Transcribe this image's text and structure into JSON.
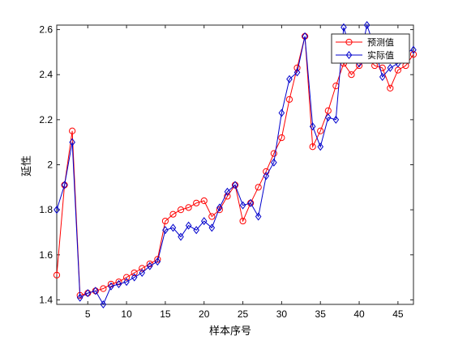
{
  "chart_data": {
    "type": "line",
    "xlabel": "样本序号",
    "ylabel": "延性",
    "xlim": [
      1,
      47
    ],
    "ylim": [
      1.38,
      2.62
    ],
    "xticks": [
      5,
      10,
      15,
      20,
      25,
      30,
      35,
      40,
      45
    ],
    "yticks": [
      1.4,
      1.6,
      1.8,
      2.0,
      2.2,
      2.4,
      2.6
    ],
    "ytick_labels": [
      "1.4",
      "1.6",
      "1.8",
      "2",
      "2.2",
      "2.4",
      "2.6"
    ],
    "grid": false,
    "legend_position": "top-right",
    "x": [
      1,
      2,
      3,
      4,
      5,
      6,
      7,
      8,
      9,
      10,
      11,
      12,
      13,
      14,
      15,
      16,
      17,
      18,
      19,
      20,
      21,
      22,
      23,
      24,
      25,
      26,
      27,
      28,
      29,
      30,
      31,
      32,
      33,
      34,
      35,
      36,
      37,
      38,
      39,
      40,
      41,
      42,
      43,
      44,
      45,
      46,
      47
    ],
    "series": [
      {
        "name": "预测值",
        "color": "#ff0000",
        "marker": "circle",
        "values": [
          1.51,
          1.91,
          2.15,
          1.42,
          1.43,
          1.44,
          1.45,
          1.47,
          1.48,
          1.5,
          1.52,
          1.54,
          1.56,
          1.58,
          1.75,
          1.78,
          1.8,
          1.81,
          1.83,
          1.84,
          1.77,
          1.8,
          1.86,
          1.91,
          1.75,
          1.83,
          1.9,
          1.97,
          2.05,
          2.12,
          2.29,
          2.43,
          2.57,
          2.08,
          2.15,
          2.24,
          2.35,
          2.45,
          2.4,
          2.44,
          2.48,
          2.44,
          2.43,
          2.34,
          2.42,
          2.44,
          2.49
        ]
      },
      {
        "name": "实际值",
        "color": "#0000cc",
        "marker": "diamond",
        "values": [
          1.8,
          1.91,
          2.1,
          1.41,
          1.43,
          1.44,
          1.38,
          1.46,
          1.47,
          1.48,
          1.5,
          1.52,
          1.55,
          1.57,
          1.71,
          1.72,
          1.68,
          1.73,
          1.71,
          1.75,
          1.72,
          1.81,
          1.88,
          1.91,
          1.82,
          1.83,
          1.77,
          1.95,
          2.01,
          2.23,
          2.38,
          2.41,
          2.57,
          2.17,
          2.08,
          2.21,
          2.2,
          2.61,
          2.5,
          2.45,
          2.62,
          2.52,
          2.39,
          2.43,
          2.45,
          2.5,
          2.51
        ]
      }
    ]
  }
}
